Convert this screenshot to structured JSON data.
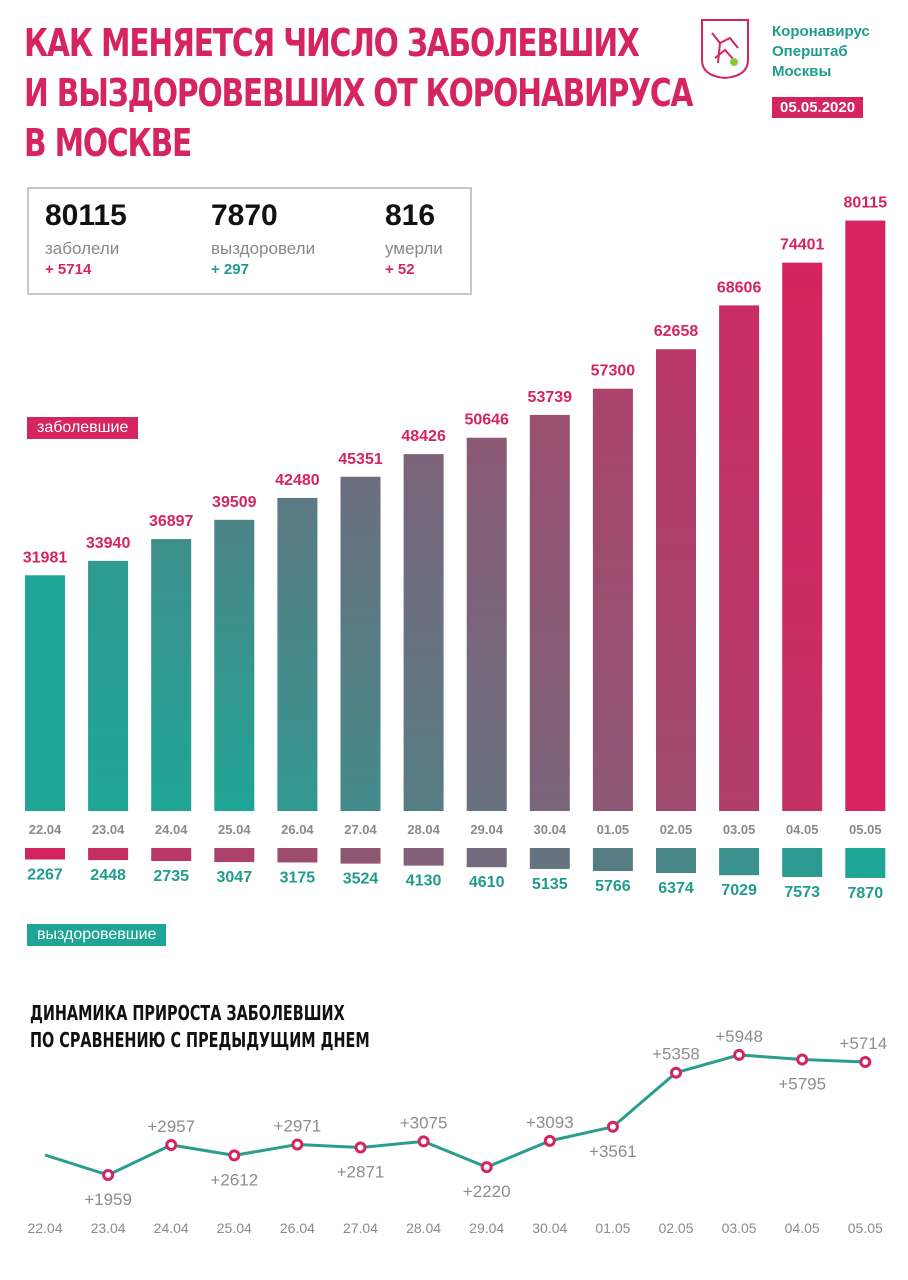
{
  "header": {
    "title_lines": [
      "КАК МЕНЯЕТСЯ ЧИСЛО ЗАБОЛЕВШИХ",
      "И ВЫЗДОРОВЕВШИХ ОТ КОРОНАВИРУСА",
      "В МОСКВЕ"
    ],
    "org_lines": [
      "Коронавирус",
      "Оперштаб",
      "Москвы"
    ],
    "date": "05.05.2020",
    "logo": "moscow-coat-of-arms"
  },
  "stats": [
    {
      "value": "80115",
      "label": "заболели",
      "delta": "+ 5714",
      "color": "#d5245f"
    },
    {
      "value": "7870",
      "label": "выздоровели",
      "delta": "+ 297",
      "color": "#1f9c8d"
    },
    {
      "value": "816",
      "label": "умерли",
      "delta": "+ 52",
      "color": "#d5245f"
    }
  ],
  "colors": {
    "pink": "#d5245f",
    "teal": "#1fa595",
    "gray": "#8a8a8a"
  },
  "chart_data": [
    {
      "type": "bar",
      "categories": [
        "22.04",
        "23.04",
        "24.04",
        "25.04",
        "26.04",
        "27.04",
        "28.04",
        "29.04",
        "30.04",
        "01.05",
        "02.05",
        "03.05",
        "04.05",
        "05.05"
      ],
      "series": [
        {
          "name": "заболевшие",
          "values": [
            31981,
            33940,
            36897,
            39509,
            42480,
            45351,
            48426,
            50646,
            53739,
            57300,
            62658,
            68606,
            74401,
            80115
          ]
        },
        {
          "name": "выздоровевшие",
          "values": [
            2267,
            2448,
            2735,
            3047,
            3175,
            3524,
            4130,
            4610,
            5135,
            5766,
            6374,
            7029,
            7573,
            7870
          ]
        }
      ]
    },
    {
      "type": "line",
      "title_lines": [
        "ДИНАМИКА ПРИРОСТА ЗАБОЛЕВШИХ",
        "ПО СРАВНЕНИЮ С ПРЕДЫДУЩИМ ДНЕМ"
      ],
      "categories": [
        "22.04",
        "23.04",
        "24.04",
        "25.04",
        "26.04",
        "27.04",
        "28.04",
        "29.04",
        "30.04",
        "01.05",
        "02.05",
        "03.05",
        "04.05",
        "05.05"
      ],
      "values": [
        null,
        1959,
        2957,
        2612,
        2971,
        2871,
        3075,
        2220,
        3093,
        3561,
        5358,
        5948,
        5795,
        5714
      ],
      "labels": [
        "",
        "+1959",
        "+2957",
        "+2612",
        "+2971",
        "+2871",
        "+3075",
        "+2220",
        "+3093",
        "+3561",
        "+5358",
        "+5948",
        "+5795",
        "+5714"
      ]
    }
  ]
}
